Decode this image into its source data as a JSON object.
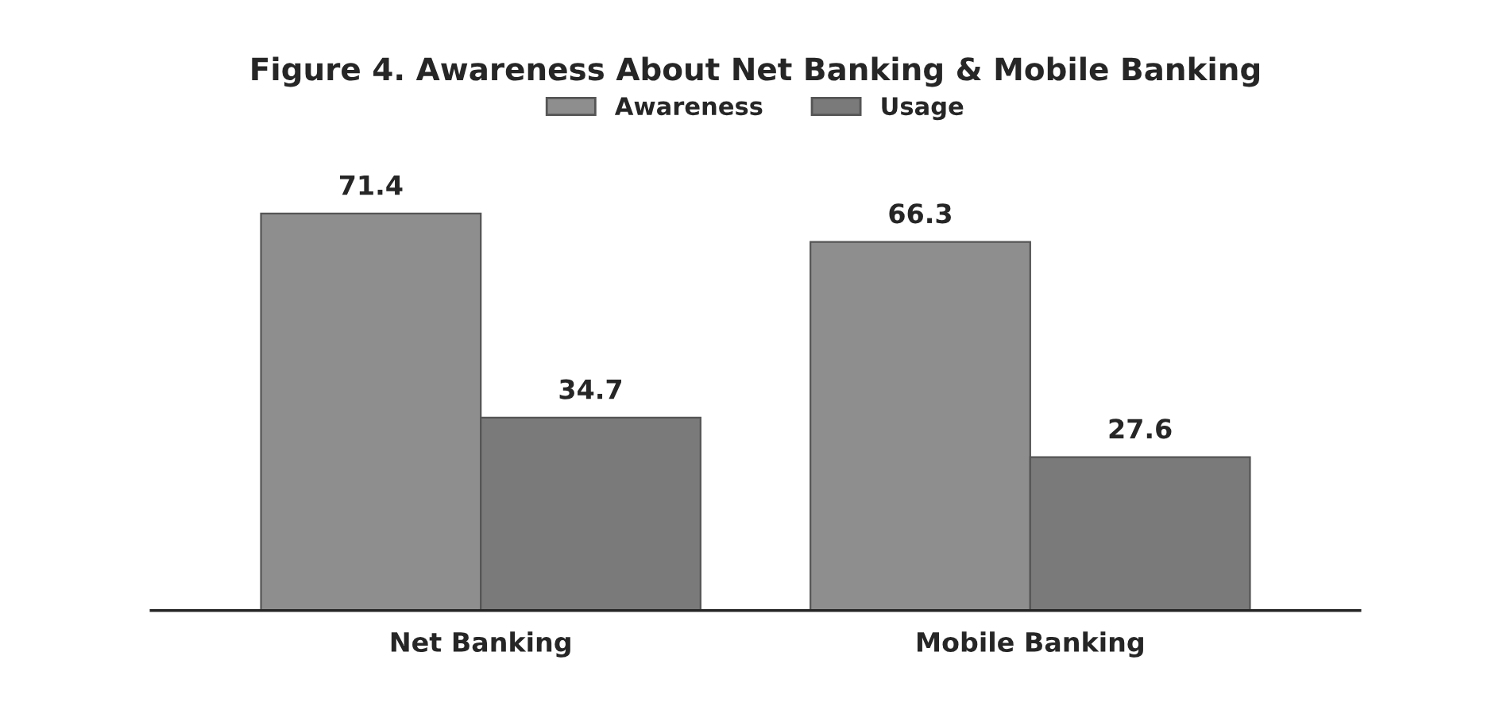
{
  "chart_data": {
    "type": "bar",
    "title": "Figure 4. Awareness About Net Banking & Mobile Banking",
    "categories": [
      "Net Banking",
      "Mobile Banking"
    ],
    "series": [
      {
        "name": "Awareness",
        "color": "#8e8e8e",
        "values": [
          71.4,
          66.3
        ]
      },
      {
        "name": "Usage",
        "color": "#7a7a7a",
        "values": [
          34.7,
          27.6
        ]
      }
    ],
    "data_labels": true,
    "legend": "top",
    "grid": false
  }
}
